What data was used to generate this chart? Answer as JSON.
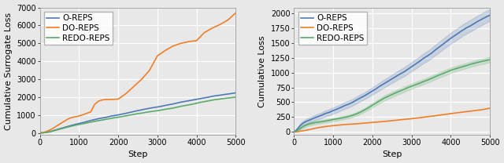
{
  "left": {
    "xlabel": "Step",
    "ylabel": "Cumulative Surrogate Loss",
    "xlim": [
      0,
      5000
    ],
    "ylim": [
      -100,
      7000
    ],
    "yticks": [
      0,
      1000,
      2000,
      3000,
      4000,
      5000,
      6000,
      7000
    ],
    "xticks": [
      0,
      1000,
      2000,
      3000,
      4000,
      5000
    ],
    "lines": {
      "O-REPS": {
        "color": "#4c78b5",
        "lw": 1.2,
        "x": [
          0,
          50,
          100,
          150,
          200,
          250,
          300,
          350,
          400,
          450,
          500,
          600,
          700,
          800,
          900,
          1000,
          1100,
          1200,
          1300,
          1400,
          1500,
          1600,
          1700,
          1800,
          1900,
          2000,
          2100,
          2200,
          2300,
          2400,
          2500,
          2600,
          2700,
          2800,
          2900,
          3000,
          3100,
          3200,
          3300,
          3400,
          3500,
          3600,
          3700,
          3800,
          3900,
          4000,
          4100,
          4200,
          4300,
          4400,
          4500,
          4600,
          4700,
          4800,
          4900,
          5000
        ],
        "y": [
          0,
          8,
          18,
          32,
          52,
          76,
          105,
          135,
          168,
          200,
          235,
          295,
          360,
          420,
          480,
          530,
          580,
          640,
          700,
          750,
          800,
          840,
          880,
          935,
          975,
          1010,
          1055,
          1100,
          1150,
          1200,
          1250,
          1290,
          1340,
          1380,
          1420,
          1450,
          1490,
          1540,
          1580,
          1620,
          1670,
          1720,
          1760,
          1800,
          1840,
          1880,
          1920,
          1960,
          2000,
          2045,
          2080,
          2110,
          2145,
          2175,
          2205,
          2240
        ]
      },
      "DO-REPS": {
        "color": "#f07e26",
        "lw": 1.2,
        "x": [
          0,
          50,
          100,
          150,
          200,
          250,
          300,
          350,
          400,
          450,
          500,
          600,
          700,
          800,
          900,
          1000,
          1100,
          1200,
          1300,
          1400,
          1500,
          1600,
          1700,
          1800,
          1900,
          2000,
          2200,
          2400,
          2600,
          2800,
          3000,
          3200,
          3400,
          3600,
          3800,
          4000,
          4200,
          4400,
          4600,
          4800,
          5000
        ],
        "y": [
          0,
          18,
          42,
          75,
          115,
          165,
          220,
          280,
          350,
          420,
          490,
          620,
          760,
          860,
          900,
          950,
          1020,
          1100,
          1180,
          1600,
          1780,
          1850,
          1870,
          1870,
          1880,
          1890,
          2200,
          2600,
          3000,
          3500,
          4300,
          4600,
          4850,
          5000,
          5100,
          5150,
          5600,
          5850,
          6050,
          6300,
          6700
        ]
      },
      "REDO-REPS": {
        "color": "#5aaa6a",
        "lw": 1.2,
        "x": [
          0,
          50,
          100,
          150,
          200,
          250,
          300,
          350,
          400,
          450,
          500,
          600,
          700,
          800,
          900,
          1000,
          1100,
          1200,
          1300,
          1400,
          1500,
          1600,
          1700,
          1800,
          1900,
          2000,
          2100,
          2200,
          2300,
          2400,
          2500,
          2600,
          2700,
          2800,
          2900,
          3000,
          3100,
          3200,
          3300,
          3400,
          3500,
          3600,
          3700,
          3800,
          3900,
          4000,
          4100,
          4200,
          4300,
          4400,
          4500,
          4600,
          4700,
          4800,
          4900,
          5000
        ],
        "y": [
          0,
          6,
          14,
          26,
          44,
          66,
          92,
          120,
          150,
          180,
          210,
          268,
          325,
          378,
          430,
          475,
          518,
          562,
          608,
          650,
          690,
          728,
          770,
          808,
          850,
          880,
          920,
          960,
          1000,
          1040,
          1080,
          1110,
          1150,
          1185,
          1215,
          1245,
          1280,
          1320,
          1355,
          1390,
          1440,
          1490,
          1530,
          1570,
          1610,
          1660,
          1710,
          1750,
          1790,
          1835,
          1870,
          1895,
          1925,
          1950,
          1975,
          2000
        ]
      }
    }
  },
  "right": {
    "xlabel": "Step",
    "ylabel": "Cumulative Loss",
    "xlim": [
      0,
      5000
    ],
    "ylim": [
      -50,
      2100
    ],
    "yticks": [
      0,
      250,
      500,
      750,
      1000,
      1250,
      1500,
      1750,
      2000
    ],
    "xticks": [
      0,
      1000,
      2000,
      3000,
      4000,
      5000
    ],
    "lines": {
      "O-REPS": {
        "color": "#4c78b5",
        "lw": 1.2,
        "x": [
          0,
          50,
          100,
          150,
          200,
          250,
          300,
          350,
          400,
          450,
          500,
          600,
          700,
          800,
          900,
          1000,
          1100,
          1200,
          1300,
          1400,
          1500,
          1600,
          1700,
          1800,
          1900,
          2000,
          2100,
          2200,
          2300,
          2400,
          2500,
          2600,
          2700,
          2800,
          2900,
          3000,
          3100,
          3200,
          3300,
          3400,
          3500,
          3600,
          3700,
          3800,
          3900,
          4000,
          4100,
          4200,
          4300,
          4400,
          4500,
          4600,
          4700,
          4800,
          4900,
          5000
        ],
        "y": [
          0,
          25,
          60,
          100,
          130,
          155,
          172,
          188,
          200,
          215,
          230,
          255,
          280,
          310,
          330,
          360,
          385,
          415,
          445,
          470,
          500,
          540,
          575,
          610,
          650,
          690,
          730,
          775,
          815,
          855,
          895,
          935,
          975,
          1010,
          1055,
          1100,
          1145,
          1190,
          1240,
          1280,
          1325,
          1380,
          1430,
          1480,
          1530,
          1580,
          1625,
          1670,
          1715,
          1755,
          1790,
          1830,
          1870,
          1905,
          1940,
          1970
        ],
        "std": [
          0,
          18,
          28,
          35,
          38,
          40,
          42,
          43,
          44,
          45,
          45,
          47,
          48,
          50,
          50,
          52,
          53,
          54,
          55,
          56,
          56,
          57,
          58,
          58,
          60,
          62,
          63,
          65,
          67,
          68,
          70,
          72,
          73,
          74,
          75,
          77,
          78,
          80,
          82,
          83,
          85,
          87,
          88,
          90,
          92,
          93,
          94,
          95,
          96,
          97,
          98,
          98,
          98,
          99,
          99,
          100
        ]
      },
      "DO-REPS": {
        "color": "#f07e26",
        "lw": 1.2,
        "x": [
          0,
          50,
          100,
          150,
          200,
          250,
          300,
          350,
          400,
          450,
          500,
          600,
          700,
          800,
          900,
          1000,
          1100,
          1200,
          1300,
          1400,
          1500,
          1600,
          1700,
          1800,
          1900,
          2000,
          2200,
          2400,
          2600,
          2800,
          3000,
          3200,
          3400,
          3600,
          3800,
          4000,
          4200,
          4400,
          4600,
          4800,
          5000
        ],
        "y": [
          0,
          2,
          5,
          10,
          15,
          20,
          26,
          33,
          40,
          48,
          55,
          68,
          80,
          90,
          98,
          105,
          112,
          118,
          123,
          128,
          132,
          137,
          142,
          148,
          154,
          160,
          170,
          182,
          196,
          210,
          222,
          238,
          255,
          272,
          290,
          308,
          325,
          342,
          358,
          374,
          400
        ],
        "std": []
      },
      "REDO-REPS": {
        "color": "#5aaa6a",
        "lw": 1.2,
        "x": [
          0,
          50,
          100,
          150,
          200,
          250,
          300,
          350,
          400,
          450,
          500,
          600,
          700,
          800,
          900,
          1000,
          1100,
          1200,
          1300,
          1400,
          1500,
          1600,
          1700,
          1800,
          1900,
          2000,
          2100,
          2200,
          2300,
          2400,
          2500,
          2600,
          2700,
          2800,
          2900,
          3000,
          3100,
          3200,
          3300,
          3400,
          3500,
          3600,
          3700,
          3800,
          3900,
          4000,
          4100,
          4200,
          4300,
          4400,
          4500,
          4600,
          4700,
          4800,
          4900,
          5000
        ],
        "y": [
          0,
          12,
          30,
          52,
          75,
          95,
          112,
          125,
          135,
          143,
          150,
          162,
          172,
          182,
          195,
          208,
          220,
          232,
          245,
          260,
          280,
          305,
          335,
          370,
          408,
          450,
          490,
          530,
          568,
          600,
          630,
          660,
          688,
          716,
          745,
          770,
          795,
          820,
          848,
          872,
          900,
          930,
          958,
          984,
          1010,
          1040,
          1060,
          1080,
          1100,
          1118,
          1140,
          1158,
          1175,
          1190,
          1205,
          1220
        ],
        "std": [
          0,
          10,
          18,
          24,
          27,
          28,
          28,
          28,
          28,
          28,
          28,
          28,
          28,
          28,
          28,
          28,
          28,
          28,
          28,
          28,
          28,
          30,
          32,
          33,
          35,
          37,
          39,
          40,
          42,
          43,
          44,
          44,
          44,
          44,
          44,
          44,
          44,
          44,
          44,
          44,
          44,
          44,
          44,
          44,
          44,
          44,
          44,
          44,
          44,
          44,
          44,
          44,
          44,
          44,
          44,
          44
        ]
      }
    }
  },
  "fig_bg": "#e8e8e8",
  "ax_bg": "#e8e8e8",
  "grid_color": "white",
  "legend_fontsize": 7.5,
  "axis_label_fontsize": 8,
  "tick_fontsize": 7
}
